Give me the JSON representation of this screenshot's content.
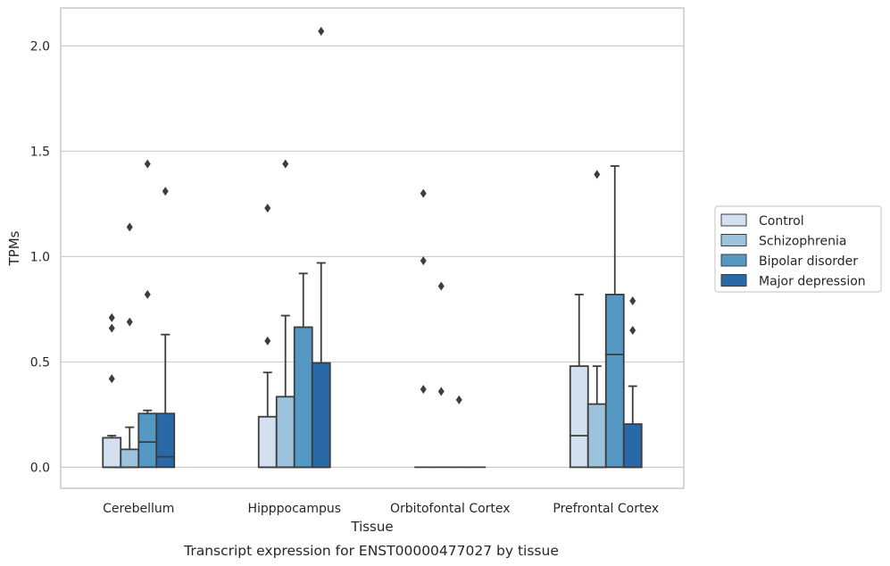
{
  "chart_data": {
    "type": "box",
    "xlabel": "Tissue",
    "ylabel": "TPMs",
    "caption": "Transcript expression for ENST00000477027 by tissue",
    "categories": [
      "Cerebellum",
      "Hipppocampus",
      "Orbitofontal Cortex",
      "Prefrontal Cortex"
    ],
    "ylim": [
      -0.1,
      2.18
    ],
    "yticks": [
      0.0,
      0.5,
      1.0,
      1.5,
      2.0
    ],
    "ytick_labels": [
      "0.0",
      "0.5",
      "1.0",
      "1.5",
      "2.0"
    ],
    "grid": true,
    "legend_position": "right",
    "series": [
      {
        "name": "Control",
        "color": "#d2e0ef",
        "boxes": [
          {
            "q1": 0.0,
            "median": 0.0,
            "q3": 0.14,
            "whislo": 0.0,
            "whishi": 0.15,
            "fliers": [
              0.71,
              0.66,
              0.42
            ]
          },
          {
            "q1": 0.0,
            "median": 0.0,
            "q3": 0.24,
            "whislo": 0.0,
            "whishi": 0.45,
            "fliers": [
              1.23,
              0.6
            ]
          },
          {
            "q1": 0.0,
            "median": 0.0,
            "q3": 0.0,
            "whislo": 0.0,
            "whishi": 0.0,
            "fliers": [
              1.3,
              0.98,
              0.37
            ]
          },
          {
            "q1": 0.0,
            "median": 0.15,
            "q3": 0.48,
            "whislo": 0.0,
            "whishi": 0.82,
            "fliers": []
          }
        ]
      },
      {
        "name": "Schizophrenia",
        "color": "#9cc3db",
        "boxes": [
          {
            "q1": 0.0,
            "median": 0.0,
            "q3": 0.085,
            "whislo": 0.0,
            "whishi": 0.19,
            "fliers": [
              1.14,
              0.69
            ]
          },
          {
            "q1": 0.0,
            "median": 0.0,
            "q3": 0.335,
            "whislo": 0.0,
            "whishi": 0.72,
            "fliers": [
              1.44
            ]
          },
          {
            "q1": 0.0,
            "median": 0.0,
            "q3": 0.0,
            "whislo": 0.0,
            "whishi": 0.0,
            "fliers": [
              0.86,
              0.36
            ]
          },
          {
            "q1": 0.0,
            "median": 0.0,
            "q3": 0.3,
            "whislo": 0.0,
            "whishi": 0.48,
            "fliers": [
              1.39
            ]
          }
        ]
      },
      {
        "name": "Bipolar disorder",
        "color": "#5598c4",
        "boxes": [
          {
            "q1": 0.0,
            "median": 0.12,
            "q3": 0.255,
            "whislo": 0.0,
            "whishi": 0.27,
            "fliers": [
              1.44,
              0.82
            ]
          },
          {
            "q1": 0.0,
            "median": 0.0,
            "q3": 0.665,
            "whislo": 0.0,
            "whishi": 0.92,
            "fliers": []
          },
          {
            "q1": 0.0,
            "median": 0.0,
            "q3": 0.0,
            "whislo": 0.0,
            "whishi": 0.0,
            "fliers": [
              0.32
            ]
          },
          {
            "q1": 0.0,
            "median": 0.535,
            "q3": 0.82,
            "whislo": 0.0,
            "whishi": 1.43,
            "fliers": []
          }
        ]
      },
      {
        "name": "Major depression",
        "color": "#2a69a7",
        "boxes": [
          {
            "q1": 0.0,
            "median": 0.05,
            "q3": 0.255,
            "whislo": 0.0,
            "whishi": 0.63,
            "fliers": [
              1.31
            ]
          },
          {
            "q1": 0.0,
            "median": 0.0,
            "q3": 0.495,
            "whislo": 0.0,
            "whishi": 0.97,
            "fliers": [
              2.07
            ]
          },
          {
            "q1": 0.0,
            "median": 0.0,
            "q3": 0.0,
            "whislo": 0.0,
            "whishi": 0.0,
            "fliers": []
          },
          {
            "q1": 0.0,
            "median": 0.0,
            "q3": 0.205,
            "whislo": 0.0,
            "whishi": 0.385,
            "fliers": [
              0.79,
              0.65
            ]
          }
        ]
      }
    ]
  }
}
